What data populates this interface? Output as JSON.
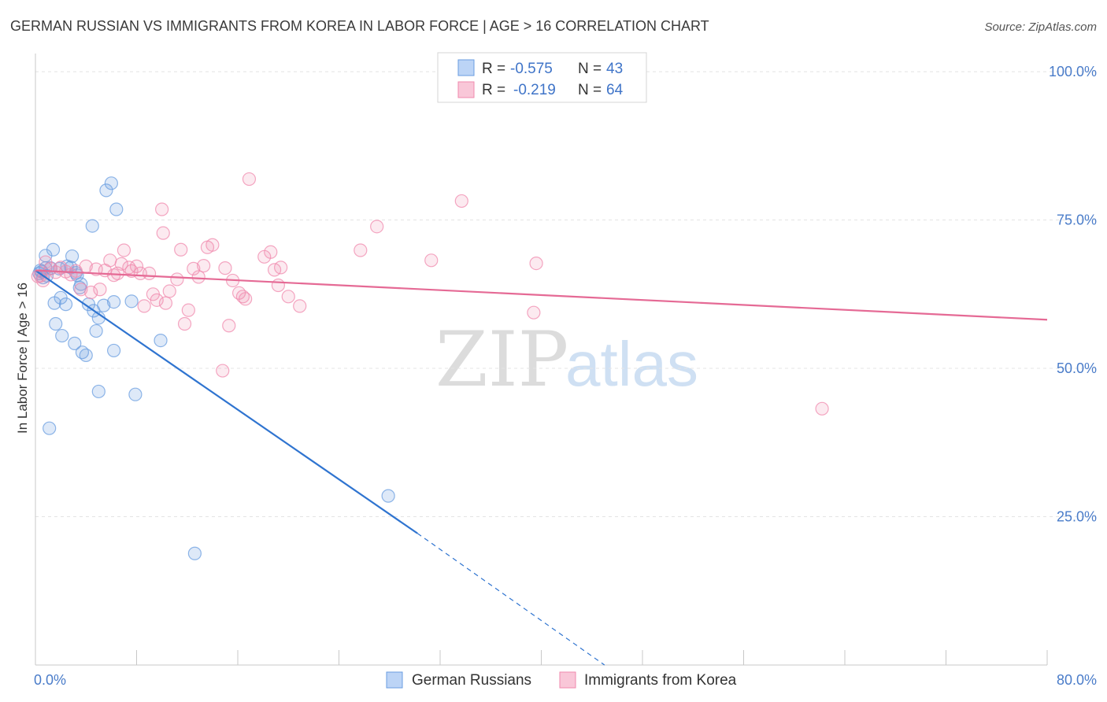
{
  "chart_data": {
    "type": "scatter",
    "title": "GERMAN RUSSIAN VS IMMIGRANTS FROM KOREA IN LABOR FORCE | AGE > 16 CORRELATION CHART",
    "source": "Source: ZipAtlas.com",
    "ylabel": "In Labor Force | Age > 16",
    "xlim": [
      0,
      80
    ],
    "ylim": [
      0,
      102
    ],
    "x_ticks": [
      {
        "value": 0,
        "label": "0.0%"
      },
      {
        "value": 80,
        "label": "80.0%"
      }
    ],
    "y_ticks": [
      {
        "value": 100,
        "label": "100.0%"
      },
      {
        "value": 75,
        "label": "75.0%"
      },
      {
        "value": 50,
        "label": "50.0%"
      },
      {
        "value": 25,
        "label": "25.0%"
      }
    ],
    "legend": {
      "placement": "top-center",
      "entries": [
        {
          "r_label": "R =",
          "r_value": "-0.575",
          "n_label": "N =",
          "n_value": "43"
        },
        {
          "r_label": "R =",
          "r_value": "-0.219",
          "n_label": "N =",
          "n_value": "64"
        }
      ]
    },
    "watermark": {
      "zip": "ZIP",
      "atlas": "atlas"
    },
    "series": [
      {
        "name": "German Russians",
        "color": "#6a9de0",
        "line_color": "#2f74d0",
        "trend": {
          "x0": 0,
          "y0": 66.5,
          "x1": 30.2,
          "y1": 22.2,
          "dash_to_x": 45,
          "dash_to_y": 0
        },
        "points": [
          [
            0.4,
            66.5
          ],
          [
            0.6,
            65.3
          ],
          [
            0.8,
            69
          ],
          [
            0.8,
            66.9
          ],
          [
            0.9,
            65.6
          ],
          [
            1.2,
            66.9
          ],
          [
            1.4,
            70
          ],
          [
            1.5,
            61
          ],
          [
            1.6,
            57.5
          ],
          [
            2,
            61.9
          ],
          [
            2.1,
            55.5
          ],
          [
            2.4,
            60.8
          ],
          [
            2.8,
            67
          ],
          [
            2.9,
            68.9
          ],
          [
            3.1,
            54.2
          ],
          [
            3.3,
            65.7
          ],
          [
            3.5,
            63.6
          ],
          [
            3.6,
            64.2
          ],
          [
            3.7,
            52.7
          ],
          [
            4,
            52.2
          ],
          [
            4.2,
            60.8
          ],
          [
            4.5,
            74
          ],
          [
            4.6,
            59.7
          ],
          [
            4.8,
            56.3
          ],
          [
            5,
            46.1
          ],
          [
            5,
            58.5
          ],
          [
            5.4,
            60.6
          ],
          [
            5.6,
            80
          ],
          [
            6,
            81.2
          ],
          [
            6.2,
            61.2
          ],
          [
            6.2,
            53
          ],
          [
            6.4,
            76.8
          ],
          [
            7.6,
            61.3
          ],
          [
            7.9,
            45.6
          ],
          [
            9.9,
            54.7
          ],
          [
            1.1,
            39.9
          ],
          [
            12.6,
            18.8
          ],
          [
            27.9,
            28.5
          ],
          [
            0.5,
            66.3
          ],
          [
            1.9,
            66.8
          ],
          [
            2.5,
            67.2
          ],
          [
            3.2,
            66.1
          ],
          [
            0.3,
            66
          ]
        ]
      },
      {
        "name": "Immigrants from Korea",
        "color": "#f08aae",
        "line_color": "#e56a95",
        "trend": {
          "x0": 0,
          "y0": 66.5,
          "x1": 80,
          "y1": 58.2
        },
        "points": [
          [
            0.4,
            65.6
          ],
          [
            0.8,
            67.9
          ],
          [
            1.2,
            66.8
          ],
          [
            1.6,
            66.2
          ],
          [
            2,
            67
          ],
          [
            2.4,
            66.3
          ],
          [
            2.8,
            65.8
          ],
          [
            3.2,
            66.4
          ],
          [
            3.6,
            63.3
          ],
          [
            4,
            67.2
          ],
          [
            4.4,
            62.8
          ],
          [
            4.8,
            66.7
          ],
          [
            5.1,
            63.3
          ],
          [
            5.5,
            66.5
          ],
          [
            5.9,
            68.2
          ],
          [
            6.2,
            65.7
          ],
          [
            6.5,
            66
          ],
          [
            6.8,
            67.6
          ],
          [
            7,
            69.9
          ],
          [
            7.4,
            67
          ],
          [
            7.6,
            66.4
          ],
          [
            8,
            67.2
          ],
          [
            8.3,
            66
          ],
          [
            8.6,
            60.5
          ],
          [
            9,
            66
          ],
          [
            9.3,
            62.5
          ],
          [
            9.6,
            61.5
          ],
          [
            10,
            76.8
          ],
          [
            10.1,
            72.8
          ],
          [
            10.3,
            61
          ],
          [
            10.6,
            63
          ],
          [
            11.2,
            65
          ],
          [
            11.5,
            70
          ],
          [
            11.8,
            57.5
          ],
          [
            12.1,
            59.8
          ],
          [
            12.5,
            66.8
          ],
          [
            12.9,
            65.4
          ],
          [
            13.3,
            67.3
          ],
          [
            13.6,
            70.4
          ],
          [
            14,
            70.8
          ],
          [
            14.8,
            49.6
          ],
          [
            15,
            66.9
          ],
          [
            15.3,
            57.2
          ],
          [
            15.6,
            64.8
          ],
          [
            16.1,
            62.7
          ],
          [
            16.4,
            62.1
          ],
          [
            16.6,
            61.7
          ],
          [
            16.9,
            81.9
          ],
          [
            18.1,
            68.8
          ],
          [
            18.6,
            69.6
          ],
          [
            18.9,
            66.6
          ],
          [
            19.2,
            64
          ],
          [
            19.4,
            67
          ],
          [
            20,
            62.1
          ],
          [
            20.9,
            60.5
          ],
          [
            25.7,
            69.9
          ],
          [
            27,
            73.9
          ],
          [
            31.3,
            68.2
          ],
          [
            33.7,
            78.2
          ],
          [
            39.4,
            59.4
          ],
          [
            39.6,
            67.7
          ],
          [
            62.2,
            43.2
          ],
          [
            0.2,
            65.5
          ],
          [
            0.6,
            64.8
          ]
        ]
      }
    ]
  }
}
